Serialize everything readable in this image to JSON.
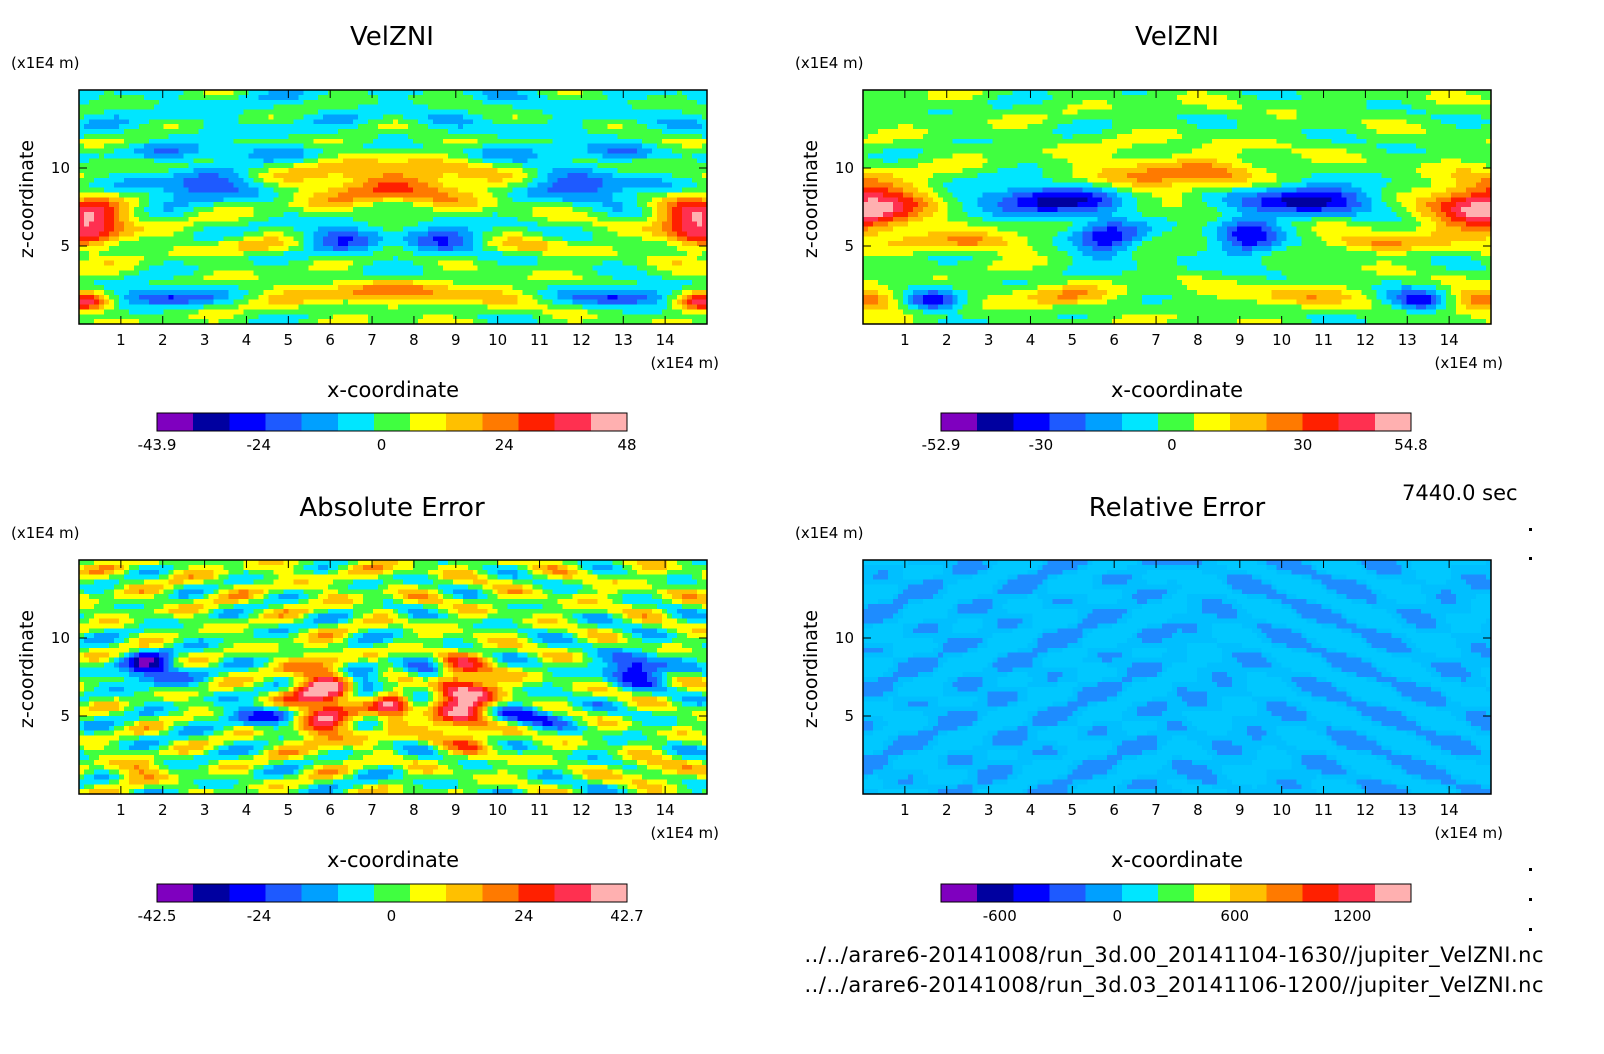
{
  "time_label": "7440.0 sec",
  "footer": {
    "file1": "../../arare6-20141008/run_3d.00_20141104-1630//jupiter_VelZNI.nc",
    "file2": "../../arare6-20141008/run_3d.03_20141106-1200//jupiter_VelZNI.nc"
  },
  "colormap": [
    "#7f00bf",
    "#0000a0",
    "#0000ff",
    "#1e5aff",
    "#00a0ff",
    "#00e6ff",
    "#40ff40",
    "#ffff00",
    "#ffc000",
    "#ff7a00",
    "#ff2000",
    "#ff3050",
    "#ffb0b0"
  ],
  "chart_data": [
    {
      "id": "p1",
      "type": "heatmap",
      "title": "VelZNI",
      "xlabel": "x-coordinate",
      "ylabel": "z-coordinate",
      "x_unit": "(x1E4 m)",
      "y_unit": "(x1E4 m)",
      "xlim": [
        0,
        15
      ],
      "ylim": [
        0,
        15
      ],
      "xticks": [
        "1",
        "2",
        "3",
        "4",
        "5",
        "6",
        "7",
        "8",
        "9",
        "10",
        "11",
        "12",
        "13",
        "14"
      ],
      "yticks": [
        "5",
        "10"
      ],
      "colorbar": {
        "ticks": [
          "-43.9",
          "-24",
          "0",
          "24",
          "48"
        ],
        "range": [
          -43.9,
          48
        ],
        "levels": 12
      },
      "pattern": "velzni_a"
    },
    {
      "id": "p2",
      "type": "heatmap",
      "title": "VelZNI",
      "xlabel": "x-coordinate",
      "ylabel": "z-coordinate",
      "x_unit": "(x1E4 m)",
      "y_unit": "(x1E4 m)",
      "xlim": [
        0,
        15
      ],
      "ylim": [
        0,
        15
      ],
      "xticks": [
        "1",
        "2",
        "3",
        "4",
        "5",
        "6",
        "7",
        "8",
        "9",
        "10",
        "11",
        "12",
        "13",
        "14"
      ],
      "yticks": [
        "5",
        "10"
      ],
      "colorbar": {
        "ticks": [
          "-52.9",
          "-30",
          "0",
          "30",
          "54.8"
        ],
        "range": [
          -52.9,
          54.8
        ],
        "levels": 12
      },
      "pattern": "velzni_b"
    },
    {
      "id": "p3",
      "type": "heatmap",
      "title": "Absolute Error",
      "xlabel": "x-coordinate",
      "ylabel": "z-coordinate",
      "x_unit": "(x1E4 m)",
      "y_unit": "(x1E4 m)",
      "xlim": [
        0,
        15
      ],
      "ylim": [
        0,
        15
      ],
      "xticks": [
        "1",
        "2",
        "3",
        "4",
        "5",
        "6",
        "7",
        "8",
        "9",
        "10",
        "11",
        "12",
        "13",
        "14"
      ],
      "yticks": [
        "5",
        "10"
      ],
      "colorbar": {
        "ticks": [
          "-42.5",
          "-24",
          "0",
          "24",
          "42.7"
        ],
        "range": [
          -42.5,
          42.7
        ],
        "levels": 12
      },
      "pattern": "abs_err"
    },
    {
      "id": "p4",
      "type": "heatmap",
      "title": "Relative Error",
      "xlabel": "x-coordinate",
      "ylabel": "z-coordinate",
      "x_unit": "(x1E4 m)",
      "y_unit": "(x1E4 m)",
      "xlim": [
        0,
        15
      ],
      "ylim": [
        0,
        15
      ],
      "xticks": [
        "1",
        "2",
        "3",
        "4",
        "5",
        "6",
        "7",
        "8",
        "9",
        "10",
        "11",
        "12",
        "13",
        "14"
      ],
      "yticks": [
        "5",
        "10"
      ],
      "colorbar": {
        "ticks": [
          "-600",
          "0",
          "600",
          "1200"
        ],
        "range": [
          -900,
          1500
        ],
        "levels": 12
      },
      "pattern": "rel_err"
    }
  ]
}
